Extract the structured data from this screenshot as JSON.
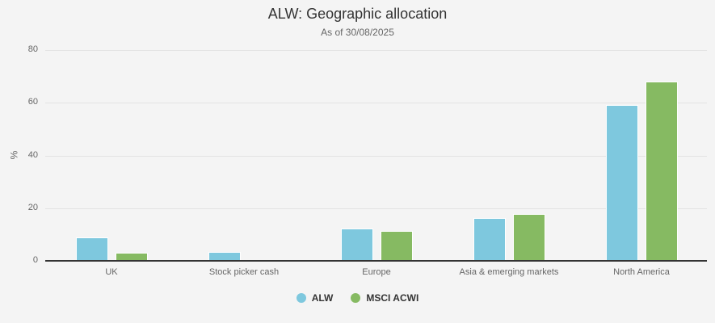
{
  "header": {
    "title": "ALW: Geographic allocation",
    "subtitle": "As of 30/08/2025"
  },
  "axis": {
    "ylabel": "%",
    "yticks": [
      "0",
      "20",
      "40",
      "60",
      "80"
    ]
  },
  "colors": {
    "ALW": "#7ec8de",
    "MSCI ACWI": "#86ba62"
  },
  "legend": [
    {
      "label": "ALW",
      "color": "#7ec8de"
    },
    {
      "label": "MSCI ACWI",
      "color": "#86ba62"
    }
  ],
  "chart_data": {
    "type": "bar",
    "title": "ALW: Geographic allocation",
    "subtitle": "As of 30/08/2025",
    "xlabel": "",
    "ylabel": "%",
    "ylim": [
      0,
      80
    ],
    "yticks": [
      0,
      20,
      40,
      60,
      80
    ],
    "grid": true,
    "legend_position": "bottom",
    "categories": [
      "UK",
      "Stock picker cash",
      "Europe",
      "Asia & emerging markets",
      "North America"
    ],
    "series": [
      {
        "name": "ALW",
        "color": "#7ec8de",
        "values": [
          9.0,
          3.5,
          12.3,
          16.3,
          59.3
        ]
      },
      {
        "name": "MSCI ACWI",
        "color": "#86ba62",
        "values": [
          3.1,
          0,
          11.4,
          17.9,
          67.9
        ]
      }
    ]
  }
}
